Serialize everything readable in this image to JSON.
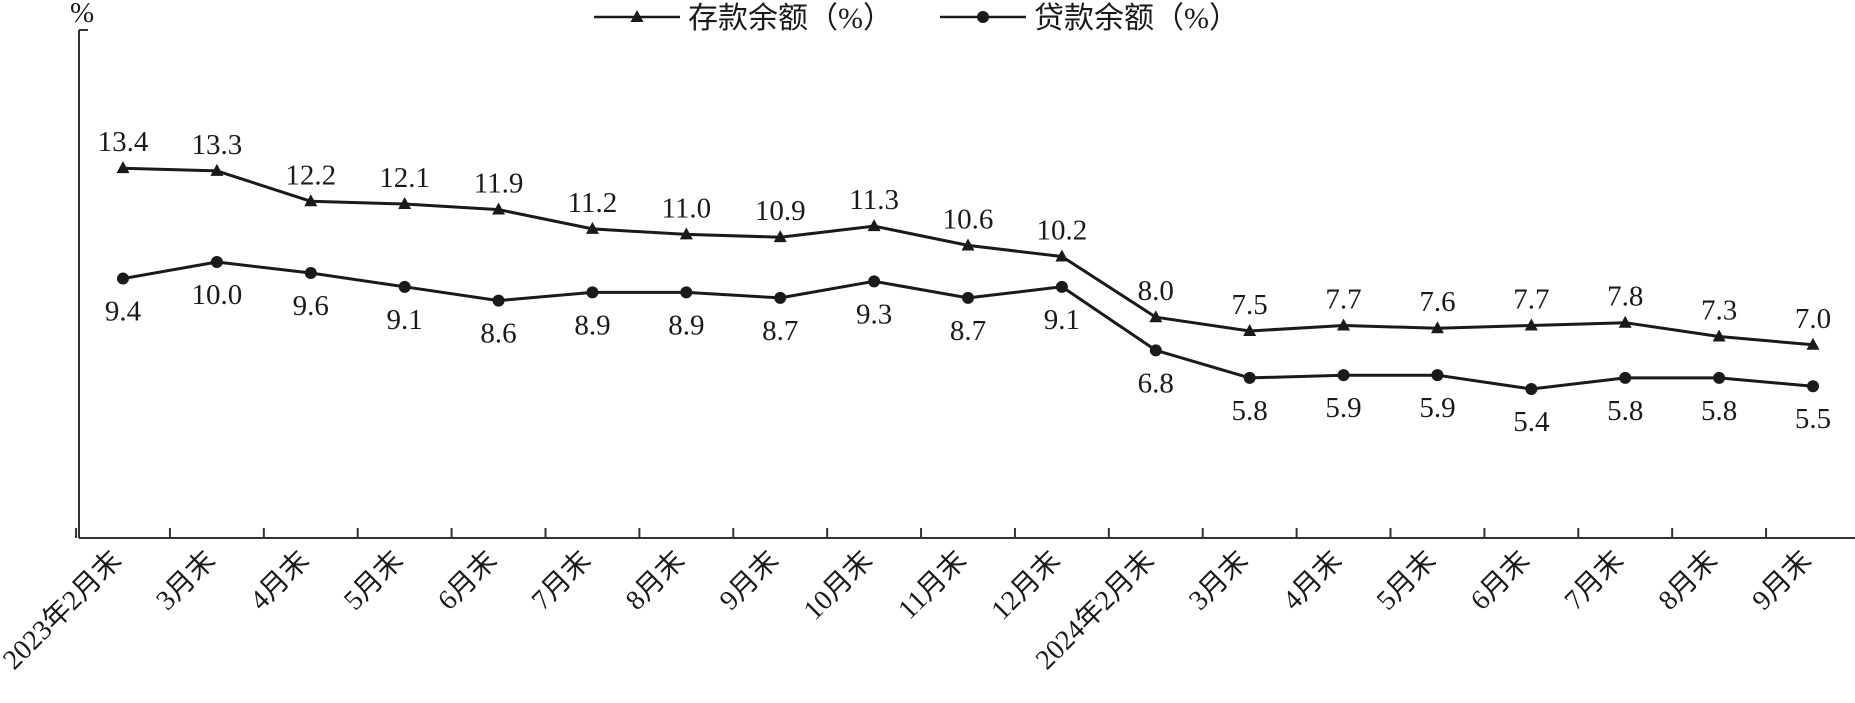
{
  "chart_data": {
    "type": "line",
    "ylabel": "%",
    "categories": [
      "2023年2月末",
      "3月末",
      "4月末",
      "5月末",
      "6月末",
      "7月末",
      "8月末",
      "9月末",
      "10月末",
      "11月末",
      "12月末",
      "2024年2月末",
      "3月末",
      "4月末",
      "5月末",
      "6月末",
      "7月末",
      "8月末",
      "9月末"
    ],
    "series": [
      {
        "name": "存款余额（%）",
        "marker": "triangle",
        "values": [
          13.4,
          13.3,
          12.2,
          12.1,
          11.9,
          11.2,
          11.0,
          10.9,
          11.3,
          10.6,
          10.2,
          8.0,
          7.5,
          7.7,
          7.6,
          7.7,
          7.8,
          7.3,
          7.0
        ]
      },
      {
        "name": "贷款余额（%）",
        "marker": "circle",
        "values": [
          9.4,
          10.0,
          9.6,
          9.1,
          8.6,
          8.9,
          8.9,
          8.7,
          9.3,
          8.7,
          9.1,
          6.8,
          5.8,
          5.9,
          5.9,
          5.4,
          5.8,
          5.8,
          5.5
        ]
      }
    ],
    "value_labels": {
      "deposit": [
        "13.4",
        "13.3",
        "12.2",
        "12.1",
        "11.9",
        "11.2",
        "11.0",
        "10.9",
        "11.3",
        "10.6",
        "10.2",
        "8.0",
        "7.5",
        "7.7",
        "7.6",
        "7.7",
        "7.8",
        "7.3",
        "7.0"
      ],
      "loan": [
        "9.4",
        "10.0",
        "9.6",
        "9.1",
        "8.6",
        "8.9",
        "8.9",
        "8.7",
        "9.3",
        "8.7",
        "9.1",
        "6.8",
        "5.8",
        "5.9",
        "5.9",
        "5.4",
        "5.8",
        "5.8",
        "5.5"
      ]
    },
    "ylim": [
      0,
      16
    ],
    "grid": false,
    "legend_position": "top",
    "colors": {
      "line": "#1a1a1a",
      "axis": "#333333"
    }
  }
}
